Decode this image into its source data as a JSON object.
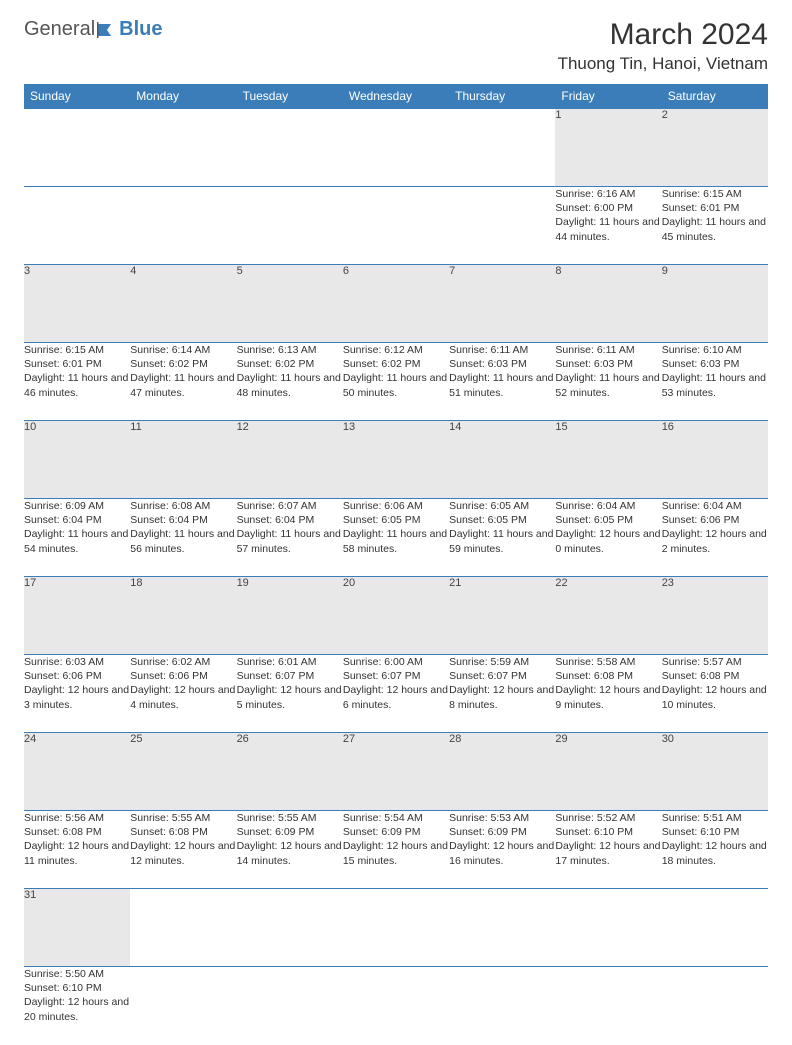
{
  "logo": {
    "text1": "General",
    "text2": "Blue"
  },
  "title": "March 2024",
  "location": "Thuong Tin, Hanoi, Vietnam",
  "colors": {
    "header_bg": "#3a7db8",
    "header_text": "#ffffff",
    "daynum_bg": "#e8e8e8",
    "border": "#3a7db8",
    "page_bg": "#ffffff",
    "text": "#333333"
  },
  "weekdays": [
    "Sunday",
    "Monday",
    "Tuesday",
    "Wednesday",
    "Thursday",
    "Friday",
    "Saturday"
  ],
  "weeks": [
    [
      null,
      null,
      null,
      null,
      null,
      {
        "n": "1",
        "sr": "Sunrise: 6:16 AM",
        "ss": "Sunset: 6:00 PM",
        "dl": "Daylight: 11 hours and 44 minutes."
      },
      {
        "n": "2",
        "sr": "Sunrise: 6:15 AM",
        "ss": "Sunset: 6:01 PM",
        "dl": "Daylight: 11 hours and 45 minutes."
      }
    ],
    [
      {
        "n": "3",
        "sr": "Sunrise: 6:15 AM",
        "ss": "Sunset: 6:01 PM",
        "dl": "Daylight: 11 hours and 46 minutes."
      },
      {
        "n": "4",
        "sr": "Sunrise: 6:14 AM",
        "ss": "Sunset: 6:02 PM",
        "dl": "Daylight: 11 hours and 47 minutes."
      },
      {
        "n": "5",
        "sr": "Sunrise: 6:13 AM",
        "ss": "Sunset: 6:02 PM",
        "dl": "Daylight: 11 hours and 48 minutes."
      },
      {
        "n": "6",
        "sr": "Sunrise: 6:12 AM",
        "ss": "Sunset: 6:02 PM",
        "dl": "Daylight: 11 hours and 50 minutes."
      },
      {
        "n": "7",
        "sr": "Sunrise: 6:11 AM",
        "ss": "Sunset: 6:03 PM",
        "dl": "Daylight: 11 hours and 51 minutes."
      },
      {
        "n": "8",
        "sr": "Sunrise: 6:11 AM",
        "ss": "Sunset: 6:03 PM",
        "dl": "Daylight: 11 hours and 52 minutes."
      },
      {
        "n": "9",
        "sr": "Sunrise: 6:10 AM",
        "ss": "Sunset: 6:03 PM",
        "dl": "Daylight: 11 hours and 53 minutes."
      }
    ],
    [
      {
        "n": "10",
        "sr": "Sunrise: 6:09 AM",
        "ss": "Sunset: 6:04 PM",
        "dl": "Daylight: 11 hours and 54 minutes."
      },
      {
        "n": "11",
        "sr": "Sunrise: 6:08 AM",
        "ss": "Sunset: 6:04 PM",
        "dl": "Daylight: 11 hours and 56 minutes."
      },
      {
        "n": "12",
        "sr": "Sunrise: 6:07 AM",
        "ss": "Sunset: 6:04 PM",
        "dl": "Daylight: 11 hours and 57 minutes."
      },
      {
        "n": "13",
        "sr": "Sunrise: 6:06 AM",
        "ss": "Sunset: 6:05 PM",
        "dl": "Daylight: 11 hours and 58 minutes."
      },
      {
        "n": "14",
        "sr": "Sunrise: 6:05 AM",
        "ss": "Sunset: 6:05 PM",
        "dl": "Daylight: 11 hours and 59 minutes."
      },
      {
        "n": "15",
        "sr": "Sunrise: 6:04 AM",
        "ss": "Sunset: 6:05 PM",
        "dl": "Daylight: 12 hours and 0 minutes."
      },
      {
        "n": "16",
        "sr": "Sunrise: 6:04 AM",
        "ss": "Sunset: 6:06 PM",
        "dl": "Daylight: 12 hours and 2 minutes."
      }
    ],
    [
      {
        "n": "17",
        "sr": "Sunrise: 6:03 AM",
        "ss": "Sunset: 6:06 PM",
        "dl": "Daylight: 12 hours and 3 minutes."
      },
      {
        "n": "18",
        "sr": "Sunrise: 6:02 AM",
        "ss": "Sunset: 6:06 PM",
        "dl": "Daylight: 12 hours and 4 minutes."
      },
      {
        "n": "19",
        "sr": "Sunrise: 6:01 AM",
        "ss": "Sunset: 6:07 PM",
        "dl": "Daylight: 12 hours and 5 minutes."
      },
      {
        "n": "20",
        "sr": "Sunrise: 6:00 AM",
        "ss": "Sunset: 6:07 PM",
        "dl": "Daylight: 12 hours and 6 minutes."
      },
      {
        "n": "21",
        "sr": "Sunrise: 5:59 AM",
        "ss": "Sunset: 6:07 PM",
        "dl": "Daylight: 12 hours and 8 minutes."
      },
      {
        "n": "22",
        "sr": "Sunrise: 5:58 AM",
        "ss": "Sunset: 6:08 PM",
        "dl": "Daylight: 12 hours and 9 minutes."
      },
      {
        "n": "23",
        "sr": "Sunrise: 5:57 AM",
        "ss": "Sunset: 6:08 PM",
        "dl": "Daylight: 12 hours and 10 minutes."
      }
    ],
    [
      {
        "n": "24",
        "sr": "Sunrise: 5:56 AM",
        "ss": "Sunset: 6:08 PM",
        "dl": "Daylight: 12 hours and 11 minutes."
      },
      {
        "n": "25",
        "sr": "Sunrise: 5:55 AM",
        "ss": "Sunset: 6:08 PM",
        "dl": "Daylight: 12 hours and 12 minutes."
      },
      {
        "n": "26",
        "sr": "Sunrise: 5:55 AM",
        "ss": "Sunset: 6:09 PM",
        "dl": "Daylight: 12 hours and 14 minutes."
      },
      {
        "n": "27",
        "sr": "Sunrise: 5:54 AM",
        "ss": "Sunset: 6:09 PM",
        "dl": "Daylight: 12 hours and 15 minutes."
      },
      {
        "n": "28",
        "sr": "Sunrise: 5:53 AM",
        "ss": "Sunset: 6:09 PM",
        "dl": "Daylight: 12 hours and 16 minutes."
      },
      {
        "n": "29",
        "sr": "Sunrise: 5:52 AM",
        "ss": "Sunset: 6:10 PM",
        "dl": "Daylight: 12 hours and 17 minutes."
      },
      {
        "n": "30",
        "sr": "Sunrise: 5:51 AM",
        "ss": "Sunset: 6:10 PM",
        "dl": "Daylight: 12 hours and 18 minutes."
      }
    ],
    [
      {
        "n": "31",
        "sr": "Sunrise: 5:50 AM",
        "ss": "Sunset: 6:10 PM",
        "dl": "Daylight: 12 hours and 20 minutes."
      },
      null,
      null,
      null,
      null,
      null,
      null
    ]
  ]
}
